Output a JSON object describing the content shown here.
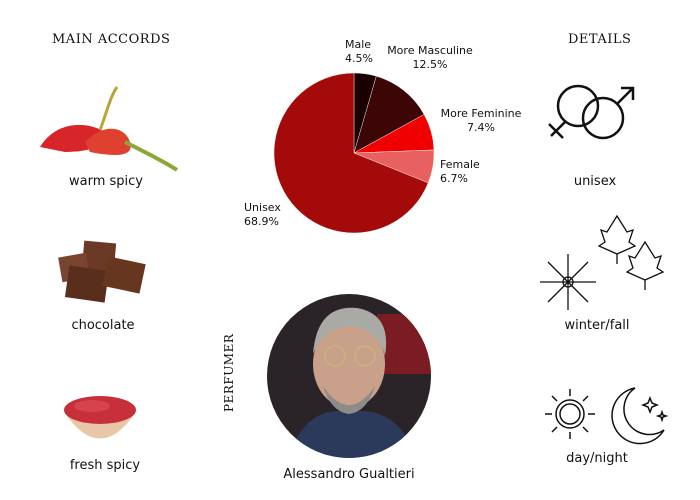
{
  "main_accords": {
    "heading": "MAIN ACCORDS",
    "items": [
      {
        "label": "warm spicy",
        "icon": "chili-pepper-icon"
      },
      {
        "label": "chocolate",
        "icon": "chocolate-icon"
      },
      {
        "label": "fresh spicy",
        "icon": "pink-pepper-bowl-icon"
      }
    ]
  },
  "details": {
    "heading": "DETAILS",
    "items": [
      {
        "label": "unisex",
        "icon": "gender-symbols-icon"
      },
      {
        "label": "winter/fall",
        "icon": "snowflake-leaves-icon"
      },
      {
        "label": "day/night",
        "icon": "sun-moon-icon"
      }
    ]
  },
  "perfumer": {
    "heading": "PERFUMER",
    "name": "Alessandro Gualtieri"
  },
  "chart_data": {
    "type": "pie",
    "categories": [
      "Male",
      "More Masculine",
      "More Feminine",
      "Female",
      "Unisex"
    ],
    "values": [
      4.5,
      12.5,
      7.4,
      6.7,
      68.9
    ],
    "value_labels": [
      "4.5%",
      "12.5%",
      "7.4%",
      "6.7%",
      "68.9%"
    ],
    "colors": [
      "#1a0000",
      "#3d0606",
      "#f00000",
      "#e86060",
      "#a50a0a"
    ],
    "start": "top",
    "direction": "clockwise"
  }
}
